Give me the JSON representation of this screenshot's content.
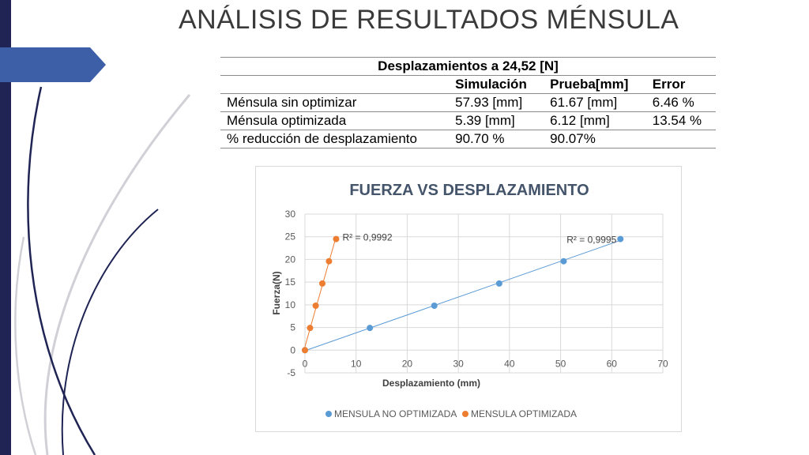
{
  "slide": {
    "title": "ANÁLISIS DE RESULTADOS MÉNSULA",
    "accent_color": "#1f2454",
    "arrow_color": "#3d5fa8"
  },
  "table": {
    "caption": "Desplazamientos a 24,52 [N]",
    "headers": [
      "",
      "Simulación",
      "Prueba[mm]",
      "Error"
    ],
    "rows": [
      [
        "Ménsula sin optimizar",
        "57.93 [mm]",
        "61.67 [mm]",
        "6.46 %"
      ],
      [
        "Ménsula optimizada",
        "5.39 [mm]",
        "6.12 [mm]",
        "13.54 %"
      ],
      [
        "% reducción de desplazamiento",
        "90.70 %",
        "90.07%",
        ""
      ]
    ]
  },
  "chart_data": {
    "type": "scatter",
    "title": "FUERZA VS DESPLAZAMIENTO",
    "xlabel": "Desplazamiento (mm)",
    "ylabel": "Fuerza(N)",
    "xlim": [
      0,
      70
    ],
    "ylim": [
      -5,
      30
    ],
    "xticks": [
      0,
      10,
      20,
      30,
      40,
      50,
      60,
      70
    ],
    "yticks": [
      -5,
      0,
      5,
      10,
      15,
      20,
      25,
      30
    ],
    "grid": true,
    "legend_position": "bottom",
    "series": [
      {
        "name": "MENSULA NO OPTIMIZADA",
        "color": "#5b9bd5",
        "x": [
          0,
          12.7,
          25.3,
          38,
          50.6,
          61.7
        ],
        "y": [
          0,
          4.9,
          9.8,
          14.7,
          19.6,
          24.5
        ],
        "trendline": true,
        "r2_label": "R² = 0,9995"
      },
      {
        "name": "MENSULA OPTIMIZADA",
        "color": "#ed7d31",
        "x": [
          0,
          1.0,
          2.1,
          3.4,
          4.7,
          6.1
        ],
        "y": [
          0,
          4.9,
          9.8,
          14.7,
          19.6,
          24.5
        ],
        "trendline": true,
        "r2_label": "R² = 0,9992"
      }
    ]
  }
}
